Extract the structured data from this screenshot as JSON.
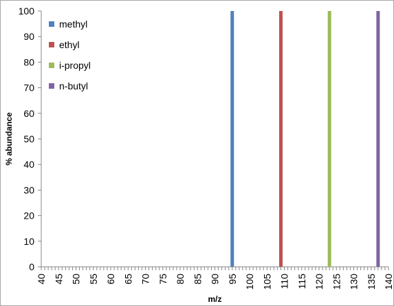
{
  "chart_data": {
    "type": "bar",
    "title": "",
    "xlabel": "m/z",
    "ylabel": "% abundance",
    "xlim": [
      40,
      140
    ],
    "ylim": [
      0,
      100
    ],
    "x_tick_step": 5,
    "y_tick_step": 10,
    "x_ticks": [
      40,
      45,
      50,
      55,
      60,
      65,
      70,
      75,
      80,
      85,
      90,
      95,
      100,
      105,
      110,
      115,
      120,
      125,
      130,
      135,
      140
    ],
    "y_ticks": [
      0,
      10,
      20,
      30,
      40,
      50,
      60,
      70,
      80,
      90,
      100
    ],
    "grid": false,
    "legend_position": "top-left",
    "series": [
      {
        "name": "methyl",
        "color": "#4f81bd",
        "points": [
          {
            "x": 95,
            "y": 100
          }
        ]
      },
      {
        "name": "ethyl",
        "color": "#c0504d",
        "points": [
          {
            "x": 109,
            "y": 100
          }
        ]
      },
      {
        "name": "i-propyl",
        "color": "#9bbb59",
        "points": [
          {
            "x": 123,
            "y": 100
          }
        ]
      },
      {
        "name": "n-butyl",
        "color": "#8064a2",
        "points": [
          {
            "x": 137,
            "y": 100
          }
        ]
      }
    ]
  }
}
